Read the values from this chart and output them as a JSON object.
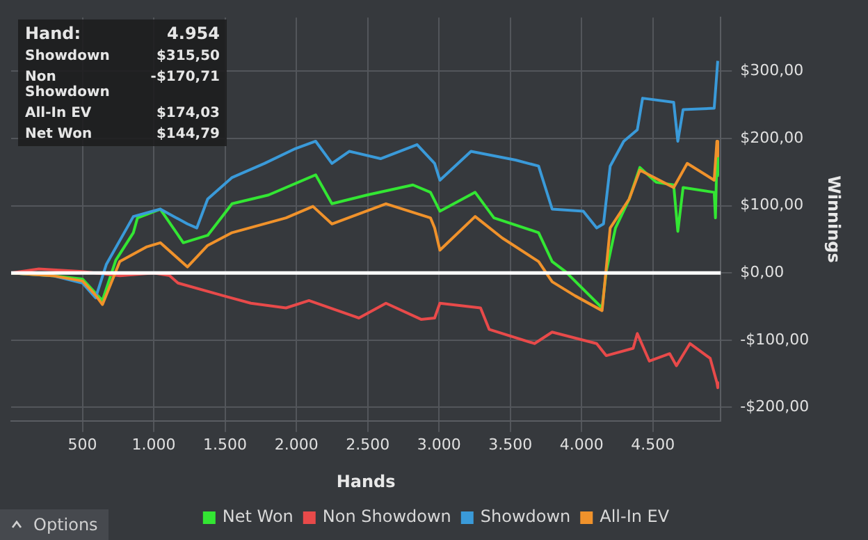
{
  "chart_data": {
    "type": "line",
    "xlabel": "Hands",
    "ylabel": "Winnings",
    "xlim": [
      0,
      4975
    ],
    "ylim": [
      -220,
      380
    ],
    "xticks": [
      500,
      {
        "value": 1000,
        "label": "1.000"
      },
      {
        "value": 1500,
        "label": "1.500"
      },
      {
        "value": 2000,
        "label": "2.000"
      },
      {
        "value": 2500,
        "label": "2.500"
      },
      {
        "value": 3000,
        "label": "3.000"
      },
      {
        "value": 3500,
        "label": "3.500"
      },
      {
        "value": 4000,
        "label": "4.000"
      },
      {
        "value": 4500,
        "label": "4.500"
      }
    ],
    "yticks": [
      {
        "value": -200,
        "label": "-$200,00"
      },
      {
        "value": -100,
        "label": "-$100,00"
      },
      {
        "value": 0,
        "label": "$0,00"
      },
      {
        "value": 100,
        "label": "$100,00"
      },
      {
        "value": 200,
        "label": "$200,00"
      },
      {
        "value": 300,
        "label": "$300,00"
      }
    ],
    "grid": true,
    "legend": "bottom",
    "marker": "none",
    "line_style": "solid",
    "ref_lines": [
      {
        "axis": "y",
        "value": 0,
        "color": "#ffffff"
      }
    ],
    "annotations": [
      "Hand:",
      "4.954",
      "Showdown",
      "$315,50",
      "Non Showdown",
      "-$170,71",
      "All-In EV",
      "$174,03",
      "Net Won",
      "$144,79",
      "Options"
    ],
    "series": [
      {
        "name": "Net Won",
        "color": "#33e633",
        "x": [
          0,
          290,
          500,
          592,
          640,
          734,
          857,
          886,
          1046,
          1207,
          1378,
          1549,
          1804,
          2135,
          2249,
          2495,
          2817,
          2940,
          3006,
          3253,
          3385,
          3698,
          3793,
          3887,
          4143,
          4172,
          4237,
          4333,
          4408,
          4522,
          4645,
          4674,
          4711,
          4929,
          4938,
          4948,
          4954
        ],
        "values": [
          0,
          -4,
          -9,
          -30,
          -41,
          19,
          60,
          82,
          95,
          45,
          56,
          103,
          116,
          146,
          103,
          116,
          131,
          120,
          92,
          120,
          82,
          60,
          17,
          2,
          -52,
          2,
          67,
          110,
          157,
          135,
          131,
          62,
          127,
          120,
          82,
          174,
          144.79
        ]
      },
      {
        "name": "Non Showdown",
        "color": "#e84a4a",
        "x": [
          0,
          194,
          500,
          763,
          1000,
          1112,
          1170,
          1490,
          1681,
          1927,
          2088,
          2438,
          2628,
          2874,
          2969,
          3006,
          3291,
          3352,
          3669,
          3793,
          4105,
          4172,
          4361,
          4390,
          4474,
          4617,
          4664,
          4759,
          4901,
          4948,
          4954
        ],
        "values": [
          0,
          6,
          2,
          -4,
          0,
          -4,
          -15,
          -34,
          -45,
          -52,
          -41,
          -67,
          -45,
          -69,
          -67,
          -45,
          -52,
          -84,
          -105,
          -88,
          -105,
          -123,
          -112,
          -90,
          -131,
          -120,
          -138,
          -105,
          -127,
          -163,
          -170.71
        ]
      },
      {
        "name": "Showdown",
        "color": "#3a9ad9",
        "x": [
          0,
          290,
          500,
          592,
          668,
          857,
          1046,
          1236,
          1302,
          1378,
          1549,
          1776,
          1993,
          2135,
          2249,
          2372,
          2590,
          2846,
          2969,
          3006,
          3224,
          3537,
          3698,
          3793,
          4011,
          4105,
          4153,
          4200,
          4295,
          4390,
          4427,
          4645,
          4674,
          4711,
          4929,
          4954
        ],
        "values": [
          0,
          -4,
          -15,
          -37,
          13,
          84,
          95,
          73,
          67,
          110,
          142,
          163,
          185,
          196,
          163,
          181,
          170,
          191,
          163,
          138,
          181,
          168,
          159,
          95,
          92,
          67,
          73,
          159,
          196,
          213,
          260,
          254,
          196,
          243,
          245,
          315.5
        ]
      },
      {
        "name": "All-In EV",
        "color": "#f0922b",
        "x": [
          0,
          290,
          500,
          592,
          640,
          762,
          952,
          1046,
          1236,
          1378,
          1549,
          1927,
          2116,
          2249,
          2628,
          2940,
          2969,
          3006,
          3253,
          3443,
          3698,
          3793,
          3954,
          4143,
          4200,
          4333,
          4408,
          4645,
          4740,
          4929,
          4948,
          4954
        ],
        "values": [
          0,
          -4,
          -12,
          -33,
          -47,
          17,
          39,
          45,
          9,
          41,
          60,
          82,
          99,
          73,
          103,
          82,
          67,
          34,
          84,
          52,
          17,
          -13,
          -34,
          -56,
          67,
          110,
          153,
          127,
          163,
          138,
          196,
          174.03
        ]
      }
    ]
  }
}
